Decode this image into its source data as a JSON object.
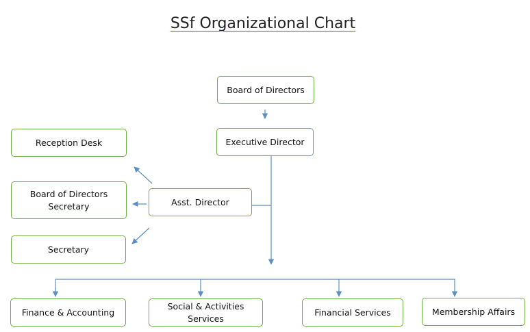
{
  "title": "SSf Organizational Chart",
  "colors": {
    "box_border": "#70ad47",
    "connector": "#5b8fc5",
    "title_underline": "#c0392b"
  },
  "nodes": {
    "board_of_directors": "Board of Directors",
    "executive_director": "Executive Director",
    "asst_director": "Asst. Director",
    "reception_desk": "Reception Desk",
    "board_secretary": "Board of Directors Secretary",
    "secretary": "Secretary",
    "finance_accounting": "Finance & Accounting",
    "social_activities": "Social & Activities Services",
    "financial_services": "Financial Services",
    "membership_affairs": "Membership Affairs"
  }
}
